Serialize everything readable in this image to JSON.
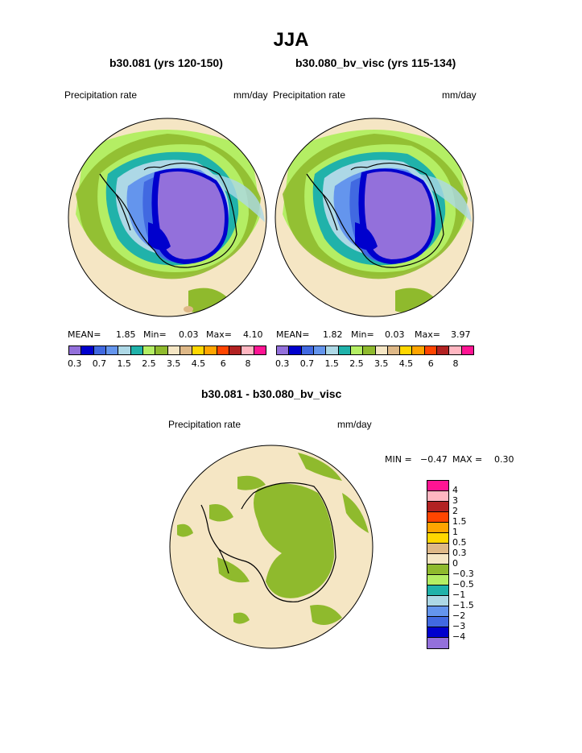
{
  "title": "JJA",
  "left_panel": {
    "subtitle": "b30.081 (yrs 120-150)",
    "variable": "Precipitation rate",
    "units": "mm/day",
    "stats": {
      "mean_label": "MEAN=",
      "mean": "1.85",
      "min_label": "Min=",
      "min": "0.03",
      "max_label": "Max=",
      "max": "4.10"
    }
  },
  "right_panel": {
    "subtitle": "b30.080_bv_visc (yrs 115-134)",
    "variable": "Precipitation rate",
    "units": "mm/day",
    "stats": {
      "mean_label": "MEAN=",
      "mean": "1.82",
      "min_label": "Min=",
      "min": "0.03",
      "max_label": "Max=",
      "max": "3.97"
    }
  },
  "diff_panel": {
    "subtitle": "b30.081 - b30.080_bv_visc",
    "variable": "Precipitation rate",
    "units": "mm/day",
    "stats": {
      "min_label": "MIN =",
      "min": "−0.47",
      "max_label": "MAX =",
      "max": "0.30"
    }
  },
  "colorbar_precip": {
    "colors": [
      "#9370db",
      "#0000cd",
      "#4169e1",
      "#6495ed",
      "#add8e6",
      "#20b2aa",
      "#b4ee64",
      "#8fba2d",
      "#f5e6c4",
      "#deb887",
      "#ffd700",
      "#ffa500",
      "#ff4500",
      "#b22222",
      "#ffb6c1",
      "#ff1493"
    ],
    "ticks": [
      "0.3",
      "0.7",
      "1.5",
      "2.5",
      "3.5",
      "4.5",
      "6",
      "8"
    ]
  },
  "colorbar_diff": {
    "colors": [
      "#ff1493",
      "#ffb6c1",
      "#b22222",
      "#ff4500",
      "#ffa500",
      "#ffd700",
      "#deb887",
      "#f5e6c4",
      "#8fba2d",
      "#b4ee64",
      "#20b2aa",
      "#add8e6",
      "#6495ed",
      "#4169e1",
      "#0000cd",
      "#9370db"
    ],
    "ticks": [
      "4",
      "3",
      "2",
      "1.5",
      "1",
      "0.5",
      "0.3",
      "0",
      "−0.3",
      "−0.5",
      "−1",
      "−1.5",
      "−2",
      "−3",
      "−4"
    ]
  }
}
